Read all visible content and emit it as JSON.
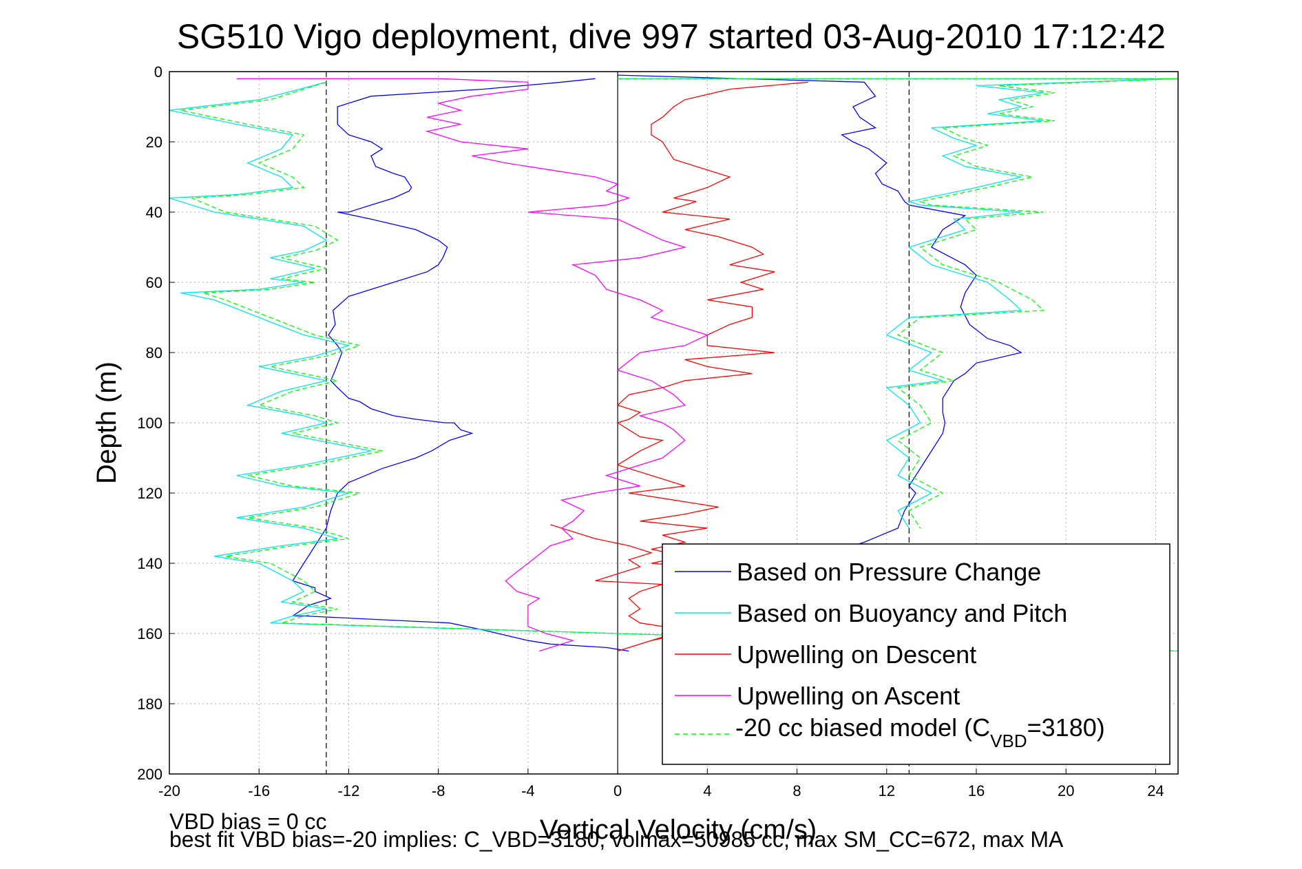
{
  "chart_data": {
    "type": "line",
    "title": "SG510 Vigo deployment, dive 997 started 03-Aug-2010 17:12:42",
    "xlabel": "Vertical Velocity (cm/s)",
    "ylabel": "Depth (m)",
    "xlim": [
      -20,
      25
    ],
    "ylim": [
      0,
      200
    ],
    "y_reversed": true,
    "grid": true,
    "xticks": [
      "-20",
      "-16",
      "-12",
      "-8",
      "-4",
      "0",
      "4",
      "8",
      "12",
      "16",
      "20",
      "24"
    ],
    "yticks": [
      "0",
      "20",
      "40",
      "60",
      "80",
      "100",
      "120",
      "140",
      "160",
      "180",
      "200"
    ],
    "reference_lines": [
      {
        "style": "dashed",
        "x": -13
      },
      {
        "style": "dashed",
        "x": 13
      },
      {
        "style": "solid",
        "x": 0
      }
    ],
    "legend_position": "bottom-right",
    "series": [
      {
        "name": "Based on Pressure Change",
        "color": "#0000ff",
        "style": "solid",
        "x": [
          -1,
          -2.5,
          -6,
          -11,
          -12.5,
          -12.5,
          -12,
          -11,
          -10.5,
          -11,
          -10.8,
          -10,
          -9.5,
          -9.2,
          -9.3,
          -10,
          -11,
          -12,
          -12.5,
          -11,
          -9,
          -8,
          -7.6,
          -7.8,
          -8,
          -8.5,
          -10,
          -12,
          -12.7,
          -12.6,
          -12.9,
          -12.5,
          -12.3,
          -12.6,
          -12.8,
          -12.5,
          -12,
          -11.5,
          -11,
          -10,
          -9,
          -7.7,
          -7.3,
          -7,
          -6.5,
          -7.5,
          -8.3,
          -9,
          -10.5,
          -12,
          -12.5,
          -12.8,
          -13,
          -13.5,
          -14,
          -14.5,
          -13.5,
          -13.5,
          -12.8,
          -13.8,
          -14.5,
          -14,
          -7.5,
          -6,
          -4,
          -3,
          -0.5,
          0.5
        ],
        "y": [
          2,
          3,
          5,
          7,
          10,
          15,
          18,
          20,
          22,
          24,
          27,
          29,
          30,
          33,
          34,
          36,
          38,
          40,
          40,
          42,
          45,
          48,
          50,
          53,
          55,
          57,
          60,
          64,
          68,
          72,
          75,
          78,
          80,
          85,
          88,
          90,
          93,
          94,
          96,
          98,
          99,
          100,
          100,
          102,
          103,
          105,
          108,
          110,
          113,
          117,
          120,
          125,
          130,
          135,
          140,
          145,
          147,
          148,
          150,
          152,
          155,
          155,
          157,
          159,
          162,
          163,
          164,
          165
        ]
      },
      {
        "name": "Based on Buoyancy and Pitch",
        "color": "#00e8e8",
        "style": "solid",
        "x": [
          -13,
          -16,
          -20,
          -17,
          -14.5,
          -15,
          -16.5,
          -15,
          -14.5,
          -17,
          -20,
          -18,
          -16,
          -14,
          -13,
          -14,
          -15.5,
          -13.5,
          -15.5,
          -14,
          -16,
          -19.5,
          -18,
          -16,
          -14,
          -12,
          -13.5,
          -16,
          -13,
          -15,
          -16.5,
          -14,
          -13,
          -15,
          -11,
          -14,
          -17,
          -15,
          -12,
          -14,
          -17,
          -14,
          -12.5,
          -15,
          -18,
          -16,
          -14.5,
          -14,
          -15,
          -13,
          -14.5,
          -15.5,
          0,
          25
        ],
        "y": [
          3,
          8,
          11,
          15,
          18,
          22,
          26,
          30,
          33,
          35,
          36,
          40,
          42,
          44,
          48,
          51,
          53,
          56,
          59,
          60,
          62,
          63,
          65,
          70,
          75,
          78,
          81,
          84,
          88,
          91,
          95,
          98,
          100,
          103,
          108,
          112,
          115,
          118,
          120,
          124,
          127,
          130,
          133,
          135,
          138,
          140,
          145,
          148,
          151,
          153,
          155,
          157,
          160,
          165
        ]
      },
      {
        "name": "Upwelling on Descent",
        "color": "#ff0000",
        "style": "solid",
        "x": [
          8.5,
          5,
          3,
          2.5,
          2,
          1.5,
          1.5,
          2,
          2.2,
          2.5,
          4,
          5,
          4,
          2.5,
          3.5,
          2,
          5,
          3,
          4.5,
          6,
          6.5,
          5,
          7,
          5.5,
          6.5,
          4,
          6,
          6,
          5,
          4,
          4,
          7,
          3,
          4,
          6,
          3,
          2,
          0.5,
          0,
          1,
          0.5,
          0,
          0.5,
          1,
          2,
          1,
          0,
          3,
          0.5,
          2.5,
          4.5,
          3,
          1,
          4,
          2,
          3,
          1.5,
          3,
          1.5,
          5,
          2,
          4,
          3,
          3,
          7,
          5.5,
          4,
          7,
          3,
          1.5,
          0,
          1,
          2,
          3,
          1,
          0.5,
          1,
          0.5,
          1,
          2,
          -1,
          0,
          1,
          0.5,
          1.5,
          0.5,
          -1,
          -2,
          -3
        ],
        "y": [
          3,
          5,
          8,
          10,
          13,
          15,
          18,
          20,
          22,
          25,
          28,
          30,
          33,
          36,
          37,
          40,
          42,
          45,
          47,
          50,
          52,
          55,
          57,
          60,
          62,
          65,
          67,
          70,
          72,
          75,
          78,
          80,
          82,
          84,
          86,
          88,
          90,
          92,
          95,
          97,
          99,
          100,
          102,
          104,
          105,
          108,
          112,
          118,
          120,
          122,
          124,
          126,
          128,
          130,
          132,
          134,
          136,
          138,
          140,
          142,
          144,
          146,
          148,
          150,
          152,
          154,
          156,
          158,
          160,
          162,
          165,
          163,
          161,
          159,
          157,
          155,
          153,
          150,
          148,
          146,
          145,
          143,
          141,
          139,
          137,
          135,
          133,
          131,
          129
        ]
      },
      {
        "name": "Upwelling on Ascent",
        "color": "#ff00ff",
        "style": "solid",
        "x": [
          -17,
          -8,
          -4,
          -4,
          -6.5,
          -8,
          -7,
          -8.5,
          -7,
          -8.5,
          -7,
          -4,
          -6.5,
          -5,
          -3,
          -1,
          0,
          -0.5,
          0.5,
          -0.5,
          -4,
          0,
          1,
          2,
          3,
          1,
          -2,
          -1,
          -0.5,
          1,
          2,
          1.5,
          2.5,
          4,
          3,
          1,
          0,
          1,
          1.5,
          2,
          2.5,
          3,
          1,
          2,
          2.5,
          3,
          2,
          -0.5,
          1,
          -1,
          -2.5,
          -1.5,
          -2,
          -2.5,
          -2,
          -3,
          -5,
          -4.5,
          -3.5,
          -4,
          -4,
          -4,
          -3.2,
          -2,
          -3.5
        ],
        "y": [
          2,
          2,
          3,
          5,
          7,
          9,
          11,
          13,
          15,
          17,
          20,
          22,
          24,
          26,
          28,
          30,
          32,
          34,
          36,
          38,
          40,
          42,
          45,
          48,
          50,
          53,
          55,
          58,
          62,
          65,
          68,
          70,
          72,
          75,
          78,
          80,
          85,
          87,
          88,
          90,
          92,
          95,
          98,
          100,
          102,
          105,
          110,
          115,
          118,
          120,
          122,
          125,
          128,
          130,
          133,
          135,
          145,
          148,
          150,
          152,
          155,
          158,
          160,
          162,
          165
        ]
      },
      {
        "name": "-20 cc biased model (C_VBD=3180)",
        "color": "#00ff00",
        "style": "dashed",
        "x": [
          -13,
          -15.5,
          -19.5,
          -16.5,
          -14,
          -14.5,
          -16,
          -14.5,
          -14,
          -16.5,
          -19,
          -17.5,
          -15.5,
          -13.5,
          -12.5,
          -13.5,
          -15,
          -13,
          -15,
          -13.5,
          -15.5,
          -18.5,
          -17.5,
          -15.5,
          -13.5,
          -11.5,
          -13,
          -15.5,
          -12.5,
          -14.5,
          -16,
          -13.5,
          -12.5,
          -14.5,
          -10.5,
          -13.5,
          -16.5,
          -14.5,
          -11.5,
          -13.5,
          -16.5,
          -13.5,
          -12,
          -14.5,
          -17.5,
          -15.5,
          -14,
          -13.5,
          -14.5,
          -12.5,
          -14,
          -15,
          0,
          25
        ],
        "y": [
          3,
          8,
          11,
          15,
          18,
          22,
          26,
          30,
          33,
          35,
          36,
          40,
          42,
          44,
          48,
          51,
          53,
          56,
          59,
          60,
          62,
          63,
          65,
          70,
          75,
          78,
          81,
          84,
          88,
          91,
          95,
          98,
          100,
          103,
          108,
          112,
          115,
          118,
          120,
          124,
          127,
          130,
          133,
          135,
          138,
          140,
          145,
          148,
          151,
          153,
          155,
          157,
          160,
          165
        ]
      }
    ],
    "right_series": [
      {
        "color": "#0000ff",
        "style": "solid",
        "x": [
          0,
          11,
          11.5,
          10.5,
          10.8,
          11.5,
          10,
          10.5,
          11.2,
          12,
          11.5,
          11.8,
          12.5,
          12.8,
          13,
          15.5,
          14.5,
          14,
          15.5,
          16,
          15.5,
          15.3,
          15.7,
          16.5,
          17.5,
          18,
          16,
          15.5,
          15,
          14.5,
          14.5,
          14.6,
          14.5,
          13.8,
          13,
          13.3,
          12.8,
          12.5,
          11,
          9.5
        ],
        "y": [
          1,
          3,
          7,
          10,
          13,
          16,
          18,
          20,
          22,
          26,
          29,
          32,
          34,
          37,
          38,
          41,
          45,
          50,
          55,
          58,
          63,
          67,
          72,
          76,
          78,
          80,
          83,
          86,
          88,
          93,
          97,
          100,
          103,
          110,
          118,
          120,
          125,
          130,
          134,
          137
        ]
      },
      {
        "color": "#00e8e8",
        "style": "solid",
        "x": [
          0,
          25,
          16,
          19,
          17,
          18,
          16.5,
          19,
          14,
          15,
          16,
          14.5,
          15.5,
          18,
          16,
          14.5,
          13,
          13.5,
          18,
          15,
          15.5,
          13,
          14,
          16.5,
          17.5,
          18,
          13,
          12,
          14,
          13,
          14.5,
          12,
          13,
          13.5,
          12,
          13,
          12.5,
          14,
          12.5,
          13
        ],
        "y": [
          2,
          2,
          4,
          6,
          8,
          10,
          12,
          14,
          16,
          19,
          21,
          24,
          27,
          30,
          33,
          35,
          37,
          38,
          40,
          42,
          45,
          50,
          55,
          60,
          65,
          68,
          70,
          75,
          80,
          85,
          88,
          90,
          95,
          100,
          105,
          110,
          115,
          120,
          125,
          130
        ]
      },
      {
        "color": "#00ff00",
        "style": "dashed",
        "x": [
          0,
          25,
          17,
          19.5,
          17.5,
          18.5,
          17,
          19.5,
          14.5,
          15.5,
          16.5,
          15,
          16,
          18.5,
          16.5,
          15,
          13.5,
          14,
          19,
          15.5,
          16,
          13.5,
          14.5,
          17,
          18.5,
          19,
          13.5,
          12.5,
          14.5,
          13.5,
          15,
          12.5,
          13.5,
          14,
          12.5,
          13.5,
          13,
          14.5,
          13,
          13.5
        ],
        "y": [
          2,
          2,
          4,
          6,
          8,
          10,
          12,
          14,
          16,
          19,
          21,
          24,
          27,
          30,
          33,
          35,
          37,
          38,
          40,
          42,
          45,
          50,
          55,
          60,
          65,
          68,
          70,
          75,
          80,
          85,
          88,
          90,
          95,
          100,
          105,
          110,
          115,
          120,
          125,
          130
        ]
      }
    ]
  },
  "footer": {
    "line1": "VBD bias = 0 cc",
    "line2": "best fit VBD bias=-20 implies: C_VBD=3180, volmax=50985 cc, max SM_CC=672, max MA"
  },
  "legend": {
    "items": [
      {
        "label": "Based on Pressure Change",
        "color": "#0000ff",
        "dash": false
      },
      {
        "label": "Based on Buoyancy and Pitch",
        "color": "#00e8e8",
        "dash": false
      },
      {
        "label": "Upwelling on Descent",
        "color": "#ff0000",
        "dash": false
      },
      {
        "label": "Upwelling on Ascent",
        "color": "#ff00ff",
        "dash": false
      }
    ],
    "last_prefix": "-20 cc biased model (C",
    "last_sub": "VBD",
    "last_suffix": "=3180)",
    "last_color": "#00ff00"
  }
}
